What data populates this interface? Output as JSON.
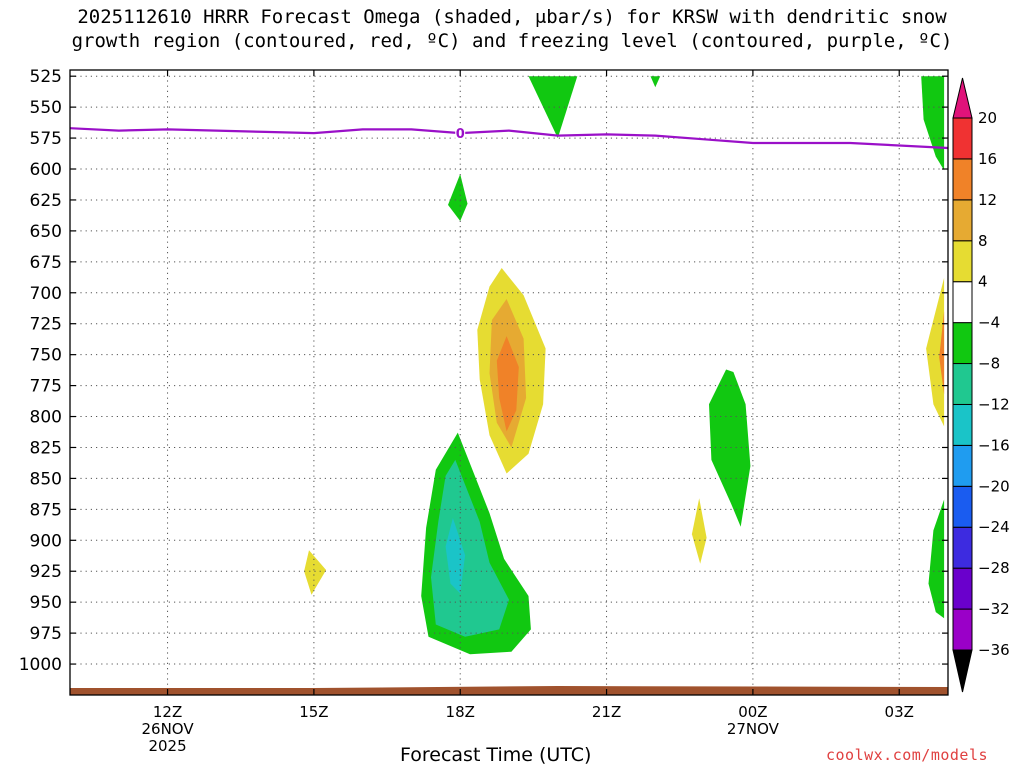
{
  "title": {
    "line1": "2025112610 HRRR Forecast Omega (shaded, μbar/s) for KRSW with dendritic snow",
    "line2": "growth region (contoured, red, ºC) and freezing level (contoured, purple, ºC)"
  },
  "credit": "coolwx.com/models",
  "colors": {
    "freezing_level": "#9a10c8",
    "ground": "#a0522d",
    "grid": "#555555"
  },
  "chart_data": {
    "type": "heatmap",
    "title": "2025112610 HRRR Forecast Omega (shaded, μbar/s) for KRSW",
    "xlabel": "Forecast Time (UTC)",
    "ylabel": "",
    "x_unit": "hours since 2025-11-26 10Z",
    "xlim": [
      0,
      18
    ],
    "ylim": [
      1025,
      520
    ],
    "y_ticks": [
      525,
      550,
      575,
      600,
      625,
      650,
      675,
      700,
      725,
      750,
      775,
      800,
      825,
      850,
      875,
      900,
      925,
      950,
      975,
      1000
    ],
    "x_ticks": [
      {
        "x": 2,
        "label": "12Z",
        "sub1": "26NOV",
        "sub2": "2025"
      },
      {
        "x": 5,
        "label": "15Z",
        "sub1": "",
        "sub2": ""
      },
      {
        "x": 8,
        "label": "18Z",
        "sub1": "",
        "sub2": ""
      },
      {
        "x": 11,
        "label": "21Z",
        "sub1": "",
        "sub2": ""
      },
      {
        "x": 14,
        "label": "00Z",
        "sub1": "27NOV",
        "sub2": ""
      },
      {
        "x": 17,
        "label": "03Z",
        "sub1": "",
        "sub2": ""
      }
    ],
    "colorbar": {
      "levels": [
        -36,
        -32,
        -28,
        -24,
        -20,
        -16,
        -12,
        -8,
        -4,
        4,
        8,
        12,
        16,
        20
      ],
      "labels": [
        "20",
        "16",
        "12",
        "8",
        "4",
        "−4",
        "−8",
        "−12",
        "−16",
        "−20",
        "−24",
        "−28",
        "−32",
        "−36"
      ],
      "colors": [
        "#a6a6a6",
        "#9a00c8",
        "#6a00cc",
        "#3d2be0",
        "#1a5cf0",
        "#1f9cf0",
        "#1ac4c8",
        "#20c890",
        "#11c811",
        "#ffffff",
        "#e6dc32",
        "#e6aa32",
        "#f08228",
        "#f03232",
        "#e0137a"
      ]
    },
    "freezing_level": {
      "label": "0",
      "label_x": 8,
      "x": [
        0,
        1,
        2,
        3,
        4,
        5,
        6,
        7,
        8,
        9,
        10,
        11,
        12,
        13,
        14,
        15,
        16,
        17,
        18
      ],
      "pressure": [
        567,
        569,
        568,
        569,
        570,
        571,
        568,
        568,
        571,
        569,
        573,
        572,
        573,
        576,
        579,
        579,
        579,
        581,
        583
      ]
    },
    "omega_regions": [
      {
        "name": "top-green-1",
        "level": "-8",
        "pts": [
          [
            9.4,
            525
          ],
          [
            10.0,
            575
          ],
          [
            10.4,
            525
          ]
        ]
      },
      {
        "name": "top-green-2",
        "level": "-8",
        "pts": [
          [
            11.9,
            525
          ],
          [
            12.0,
            534
          ],
          [
            12.1,
            525
          ]
        ]
      },
      {
        "name": "green-625",
        "level": "-8",
        "pts": [
          [
            8.0,
            604
          ],
          [
            8.15,
            628
          ],
          [
            8.0,
            642
          ],
          [
            7.75,
            629
          ]
        ]
      },
      {
        "name": "right-green-top",
        "level": "-8",
        "pts": [
          [
            17.45,
            525
          ],
          [
            17.92,
            525
          ],
          [
            17.92,
            601
          ],
          [
            17.75,
            590
          ],
          [
            17.5,
            560
          ]
        ]
      },
      {
        "name": "yellow-center",
        "level": "4",
        "pts": [
          [
            8.85,
            680
          ],
          [
            9.3,
            702
          ],
          [
            9.75,
            745
          ],
          [
            9.7,
            790
          ],
          [
            9.4,
            830
          ],
          [
            8.95,
            846
          ],
          [
            8.6,
            815
          ],
          [
            8.4,
            770
          ],
          [
            8.35,
            730
          ],
          [
            8.6,
            695
          ]
        ]
      },
      {
        "name": "gold-center",
        "level": "8",
        "pts": [
          [
            8.95,
            705
          ],
          [
            9.3,
            737
          ],
          [
            9.35,
            785
          ],
          [
            9.05,
            825
          ],
          [
            8.75,
            805
          ],
          [
            8.6,
            765
          ],
          [
            8.65,
            722
          ]
        ]
      },
      {
        "name": "orange-center",
        "level": "12",
        "pts": [
          [
            8.95,
            735
          ],
          [
            9.2,
            760
          ],
          [
            9.15,
            795
          ],
          [
            8.95,
            812
          ],
          [
            8.8,
            785
          ],
          [
            8.75,
            755
          ]
        ]
      },
      {
        "name": "green-lower",
        "level": "-8",
        "pts": [
          [
            7.95,
            813
          ],
          [
            8.6,
            878
          ],
          [
            8.9,
            915
          ],
          [
            9.4,
            945
          ],
          [
            9.45,
            972
          ],
          [
            9.05,
            990
          ],
          [
            8.2,
            992
          ],
          [
            7.35,
            978
          ],
          [
            7.2,
            945
          ],
          [
            7.3,
            890
          ],
          [
            7.5,
            843
          ]
        ]
      },
      {
        "name": "teal-lower",
        "level": "-12",
        "pts": [
          [
            7.9,
            835
          ],
          [
            8.4,
            885
          ],
          [
            8.6,
            918
          ],
          [
            9.0,
            948
          ],
          [
            8.8,
            972
          ],
          [
            8.1,
            978
          ],
          [
            7.5,
            968
          ],
          [
            7.4,
            930
          ],
          [
            7.55,
            885
          ],
          [
            7.7,
            848
          ]
        ]
      },
      {
        "name": "cyan-lower",
        "level": "-16",
        "pts": [
          [
            7.85,
            882
          ],
          [
            8.1,
            912
          ],
          [
            8.0,
            943
          ],
          [
            7.8,
            935
          ],
          [
            7.7,
            905
          ]
        ]
      },
      {
        "name": "yellow-925",
        "level": "4",
        "pts": [
          [
            4.9,
            908
          ],
          [
            5.25,
            924
          ],
          [
            4.95,
            944
          ],
          [
            4.8,
            925
          ]
        ]
      },
      {
        "name": "yellow-900",
        "level": "4",
        "pts": [
          [
            12.9,
            866
          ],
          [
            13.05,
            898
          ],
          [
            12.92,
            919
          ],
          [
            12.75,
            895
          ]
        ]
      },
      {
        "name": "green-mid",
        "level": "-8",
        "pts": [
          [
            13.45,
            762
          ],
          [
            13.1,
            790
          ],
          [
            13.15,
            835
          ],
          [
            13.55,
            870
          ],
          [
            13.75,
            889
          ],
          [
            13.95,
            840
          ],
          [
            13.85,
            790
          ],
          [
            13.6,
            764
          ]
        ]
      },
      {
        "name": "right-yellow",
        "level": "4",
        "pts": [
          [
            17.92,
            688
          ],
          [
            17.55,
            745
          ],
          [
            17.7,
            790
          ],
          [
            17.92,
            808
          ]
        ]
      },
      {
        "name": "right-orange",
        "level": "12",
        "pts": [
          [
            17.92,
            715
          ],
          [
            17.82,
            752
          ],
          [
            17.92,
            782
          ]
        ]
      },
      {
        "name": "right-green-low",
        "level": "-8",
        "pts": [
          [
            17.92,
            867
          ],
          [
            17.7,
            892
          ],
          [
            17.6,
            935
          ],
          [
            17.75,
            958
          ],
          [
            17.92,
            963
          ]
        ]
      }
    ]
  }
}
